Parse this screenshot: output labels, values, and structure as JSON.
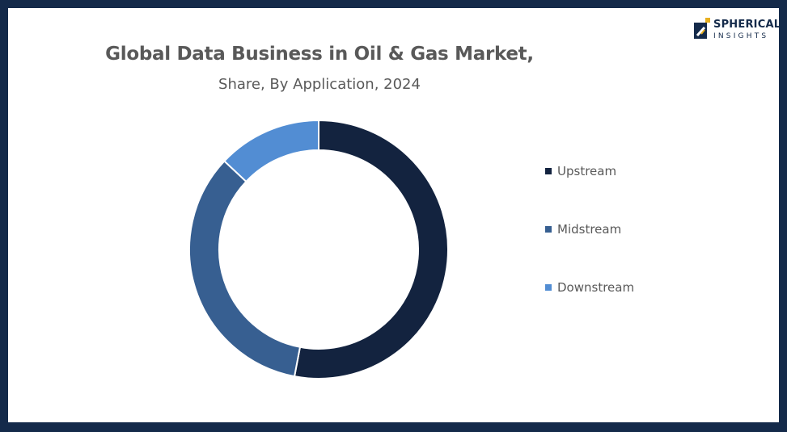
{
  "header": {
    "title": "Global Data Business in Oil & Gas Market,",
    "subtitle": "Share, By Application, 2024"
  },
  "logo": {
    "line1": "SPHERICAL",
    "line2": "INSIGHTS"
  },
  "colors": {
    "frame": "#142a4a",
    "upstream": "#13233f",
    "midstream": "#375f91",
    "downstream": "#528dd3"
  },
  "chart_data": {
    "type": "pie",
    "variant": "donut",
    "title": "Global Data Business in Oil & Gas Market,",
    "subtitle": "Share, By Application, 2024",
    "categories": [
      "Upstream",
      "Midstream",
      "Downstream"
    ],
    "values": [
      53,
      34,
      13
    ],
    "unit": "%",
    "colors": [
      "#13233f",
      "#375f91",
      "#528dd3"
    ],
    "legend": "right"
  }
}
